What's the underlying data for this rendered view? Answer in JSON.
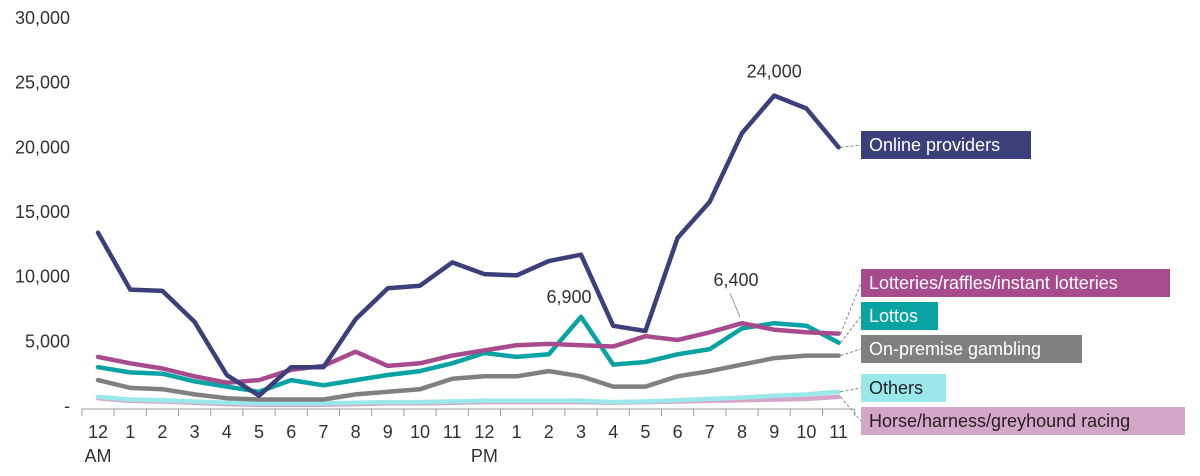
{
  "chart_data": {
    "type": "line",
    "title": "",
    "xlabel": "",
    "ylabel": "",
    "ylim": [
      0,
      30000
    ],
    "yticks": [
      {
        "value": 0,
        "label": "-"
      },
      {
        "value": 5000,
        "label": "5,000"
      },
      {
        "value": 10000,
        "label": "10,000"
      },
      {
        "value": 15000,
        "label": "15,000"
      },
      {
        "value": 20000,
        "label": "20,000"
      },
      {
        "value": 25000,
        "label": "25,000"
      },
      {
        "value": 30000,
        "label": "30,000"
      }
    ],
    "categories": [
      "12",
      "1",
      "2",
      "3",
      "4",
      "5",
      "6",
      "7",
      "8",
      "9",
      "10",
      "11",
      "12",
      "1",
      "2",
      "3",
      "4",
      "5",
      "6",
      "7",
      "8",
      "9",
      "10",
      "11"
    ],
    "sublabels": [
      {
        "index": 0,
        "text": "AM"
      },
      {
        "index": 12,
        "text": "PM"
      }
    ],
    "grid": false,
    "legend": "right",
    "series": [
      {
        "name": "Online providers",
        "color": "#3b3f7a",
        "label_text_color": "#ffffff",
        "values": [
          13400,
          9000,
          8900,
          6500,
          2400,
          800,
          3000,
          3000,
          6700,
          9100,
          9300,
          11100,
          10200,
          10100,
          11200,
          11700,
          6200,
          5800,
          13000,
          15800,
          21100,
          24000,
          23000,
          20000
        ]
      },
      {
        "name": "Lotteries/raffles/instant lotteries",
        "color": "#a84b8e",
        "label_text_color": "#ffffff",
        "values": [
          3800,
          3300,
          2900,
          2300,
          1800,
          2000,
          2800,
          3100,
          4200,
          3100,
          3300,
          3900,
          4300,
          4700,
          4800,
          4700,
          4600,
          5400,
          5100,
          5700,
          6400,
          5900,
          5700,
          5600
        ]
      },
      {
        "name": "Lottos",
        "color": "#0aa3a3",
        "label_text_color": "#ffffff",
        "values": [
          3000,
          2600,
          2500,
          1900,
          1500,
          1100,
          2000,
          1600,
          2000,
          2400,
          2700,
          3300,
          4100,
          3800,
          4000,
          6900,
          3200,
          3400,
          4000,
          4400,
          6000,
          6400,
          6200,
          4900
        ]
      },
      {
        "name": "On-premise gambling",
        "color": "#808080",
        "label_text_color": "#ffffff",
        "values": [
          2000,
          1400,
          1300,
          900,
          600,
          500,
          500,
          500,
          900,
          1100,
          1300,
          2100,
          2300,
          2300,
          2700,
          2300,
          1500,
          1500,
          2300,
          2700,
          3200,
          3700,
          3900,
          3900
        ]
      },
      {
        "name": "Others",
        "color": "#9be8ea",
        "label_text_color": "#222222",
        "values": [
          700,
          500,
          450,
          350,
          250,
          200,
          200,
          200,
          250,
          300,
          300,
          350,
          400,
          400,
          400,
          400,
          300,
          350,
          450,
          550,
          650,
          800,
          900,
          1100
        ]
      },
      {
        "name": "Horse/harness/greyhound racing",
        "color": "#d4a6c8",
        "label_text_color": "#222222",
        "values": [
          600,
          400,
          350,
          250,
          150,
          100,
          100,
          100,
          150,
          200,
          200,
          250,
          300,
          300,
          300,
          300,
          250,
          300,
          350,
          400,
          450,
          500,
          550,
          700
        ]
      }
    ],
    "annotations": [
      {
        "text": "24,000",
        "series": 0,
        "index": 21
      },
      {
        "text": "6,900",
        "series": 2,
        "index": 15
      },
      {
        "text": "6,400",
        "series": 1,
        "index": 20
      }
    ]
  }
}
